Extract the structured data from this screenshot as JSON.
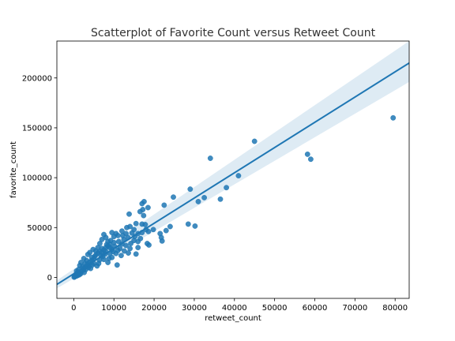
{
  "chart_data": {
    "type": "scatter",
    "title": "Scatterplot of Favorite Count versus Retweet Count",
    "xlabel": "retweet_count",
    "ylabel": "favorite_count",
    "xlim": [
      -4200,
      83500
    ],
    "ylim": [
      -21000,
      237000
    ],
    "xticks": [
      0,
      10000,
      20000,
      30000,
      40000,
      50000,
      60000,
      70000,
      80000
    ],
    "yticks": [
      0,
      50000,
      100000,
      150000,
      200000
    ],
    "grid": false,
    "legend": "none",
    "colors": {
      "points": "#1f77b4",
      "line": "#1f77b4",
      "band": "#1f77b4"
    },
    "regression": {
      "x_start": -4200,
      "x_end": 83500,
      "y_start": -7000,
      "y_end": 215000,
      "band_upper_end": 237000,
      "band_lower_end": 196000,
      "band_upper_start": -3000,
      "band_lower_start": -11000
    },
    "points": [
      [
        79500,
        160000
      ],
      [
        58200,
        123500
      ],
      [
        59000,
        118500
      ],
      [
        45000,
        136500
      ],
      [
        34000,
        119500
      ],
      [
        29000,
        88500
      ],
      [
        31000,
        76000
      ],
      [
        32500,
        80000
      ],
      [
        38000,
        90000
      ],
      [
        41000,
        102000
      ],
      [
        36500,
        78500
      ],
      [
        24800,
        80500
      ],
      [
        22500,
        72500
      ],
      [
        28500,
        53500
      ],
      [
        30200,
        51500
      ],
      [
        24000,
        51000
      ],
      [
        23000,
        47000
      ],
      [
        21500,
        44000
      ],
      [
        21800,
        40000
      ],
      [
        22000,
        36500
      ],
      [
        18500,
        70000
      ],
      [
        17500,
        76000
      ],
      [
        17000,
        74000
      ],
      [
        17200,
        68000
      ],
      [
        17400,
        62000
      ],
      [
        16500,
        66000
      ],
      [
        13800,
        63500
      ],
      [
        15500,
        54000
      ],
      [
        17000,
        53500
      ],
      [
        17800,
        53000
      ],
      [
        18000,
        48000
      ],
      [
        18600,
        46000
      ],
      [
        19800,
        48000
      ],
      [
        17000,
        45000
      ],
      [
        16000,
        44000
      ],
      [
        15000,
        48000
      ],
      [
        14000,
        51000
      ],
      [
        13200,
        50000
      ],
      [
        14500,
        44500
      ],
      [
        12000,
        46500
      ],
      [
        11000,
        42000
      ],
      [
        10500,
        44000
      ],
      [
        9500,
        45000
      ],
      [
        10000,
        41000
      ],
      [
        12500,
        38000
      ],
      [
        13500,
        40000
      ],
      [
        15000,
        37000
      ],
      [
        16000,
        36000
      ],
      [
        18300,
        34000
      ],
      [
        18700,
        32500
      ],
      [
        16000,
        30000
      ],
      [
        15500,
        23500
      ],
      [
        14000,
        29000
      ],
      [
        13000,
        32000
      ],
      [
        12000,
        33500
      ],
      [
        11500,
        29000
      ],
      [
        11000,
        27000
      ],
      [
        10500,
        24000
      ],
      [
        10800,
        12500
      ],
      [
        9500,
        20000
      ],
      [
        9000,
        30000
      ],
      [
        8500,
        36000
      ],
      [
        8000,
        40000
      ],
      [
        7500,
        43000
      ],
      [
        7000,
        38000
      ],
      [
        8200,
        33000
      ],
      [
        9200,
        37000
      ],
      [
        6500,
        34000
      ],
      [
        7000,
        29000
      ],
      [
        8000,
        26000
      ],
      [
        9000,
        24000
      ],
      [
        6000,
        30000
      ],
      [
        5500,
        26500
      ],
      [
        6800,
        22000
      ],
      [
        7500,
        18000
      ],
      [
        8500,
        15000
      ],
      [
        6200,
        14000
      ],
      [
        5200,
        21000
      ],
      [
        4800,
        28000
      ],
      [
        4500,
        17000
      ],
      [
        4000,
        25000
      ],
      [
        3500,
        23000
      ],
      [
        3200,
        17000
      ],
      [
        3800,
        12000
      ],
      [
        2500,
        19000
      ],
      [
        2800,
        14000
      ],
      [
        2200,
        10500
      ],
      [
        1800,
        15000
      ],
      [
        1500,
        12000
      ],
      [
        1200,
        8000
      ],
      [
        1000,
        5000
      ],
      [
        700,
        6500
      ],
      [
        500,
        3000
      ],
      [
        300,
        1500
      ],
      [
        200,
        800
      ],
      [
        100,
        200
      ],
      [
        1500,
        4000
      ],
      [
        2000,
        6500
      ],
      [
        2500,
        9000
      ],
      [
        3000,
        11000
      ],
      [
        3500,
        13500
      ],
      [
        4000,
        15500
      ],
      [
        4500,
        20000
      ],
      [
        5000,
        18500
      ],
      [
        5500,
        22500
      ],
      [
        6000,
        24500
      ],
      [
        6500,
        26000
      ],
      [
        7000,
        25000
      ],
      [
        7500,
        27500
      ],
      [
        8000,
        30000
      ],
      [
        8500,
        31500
      ],
      [
        9000,
        33000
      ],
      [
        9500,
        28000
      ],
      [
        10000,
        35000
      ],
      [
        4200,
        9000
      ],
      [
        3000,
        8000
      ],
      [
        2600,
        5000
      ],
      [
        1300,
        2500
      ],
      [
        900,
        1800
      ],
      [
        600,
        1200
      ],
      [
        5800,
        11500
      ],
      [
        6400,
        17500
      ],
      [
        7200,
        21000
      ],
      [
        7800,
        23500
      ],
      [
        8800,
        19000
      ],
      [
        9800,
        26000
      ],
      [
        10200,
        31000
      ],
      [
        11200,
        36000
      ],
      [
        12200,
        42000
      ],
      [
        13000,
        44000
      ],
      [
        14200,
        34000
      ],
      [
        15200,
        41000
      ],
      [
        16600,
        39000
      ],
      [
        11800,
        22000
      ],
      [
        12600,
        26500
      ],
      [
        13600,
        24500
      ],
      [
        5000,
        14000
      ],
      [
        4600,
        12500
      ],
      [
        3700,
        10000
      ],
      [
        2400,
        7500
      ],
      [
        1700,
        3500
      ]
    ]
  }
}
